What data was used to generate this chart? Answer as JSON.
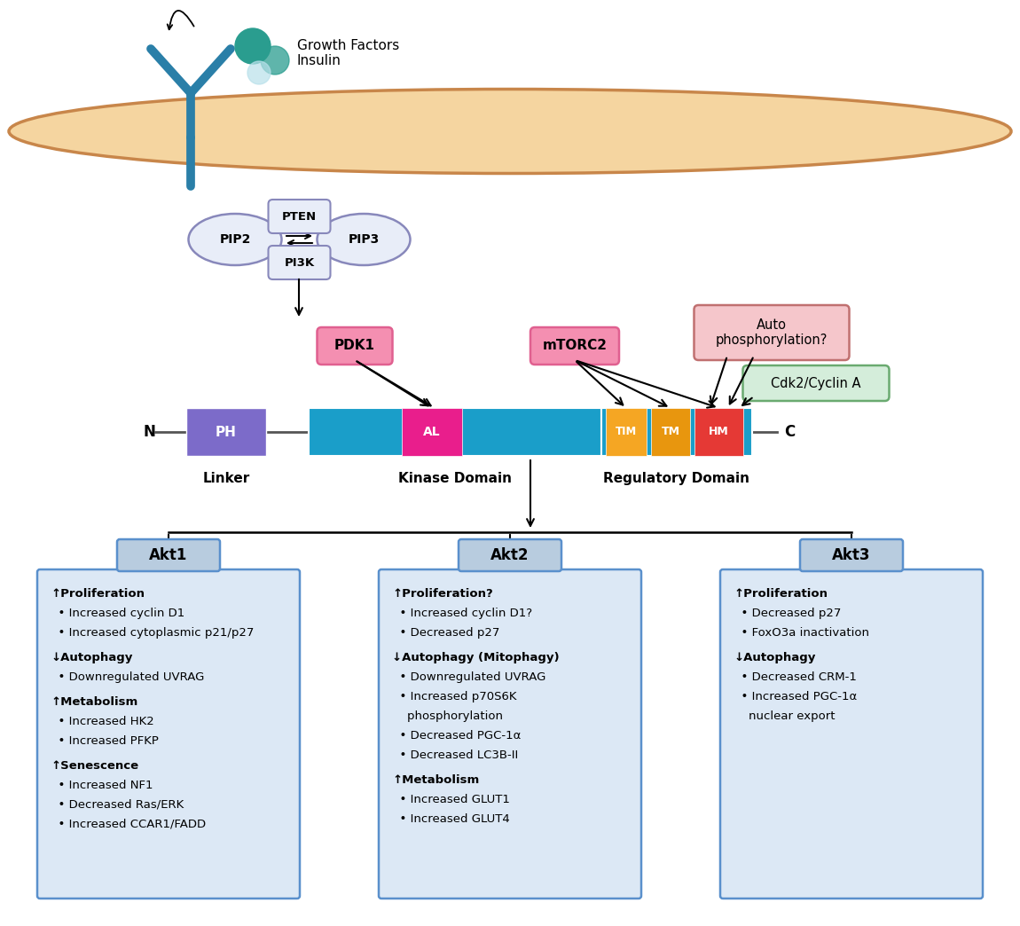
{
  "fig_width": 11.5,
  "fig_height": 10.44,
  "bg_color": "#ffffff",
  "membrane_fill": "#f5d5a0",
  "membrane_edge": "#c8864a",
  "receptor_color": "#2a7fa8",
  "growth_factor_text": "Growth Factors\nInsulin",
  "pdk1_color_fill": "#f48fb1",
  "pdk1_color_edge": "#e06090",
  "mtorc2_color_fill": "#f48fb1",
  "mtorc2_color_edge": "#e06090",
  "autophospho_color_fill": "#f5c6cb",
  "autophospho_color_edge": "#c07070",
  "cdk2_color_fill": "#d4edda",
  "cdk2_color_edge": "#6aaa70",
  "pip_fill": "#e8edf8",
  "pip_edge": "#8888bb",
  "pten_pi3k_fill": "#e8edf8",
  "pten_pi3k_edge": "#8888bb",
  "ph_color": "#7c6bc9",
  "teal_color": "#1a9ec9",
  "al_color": "#e91e8c",
  "tim_color": "#f5a623",
  "tm_color": "#e8960e",
  "hm_color": "#e53935",
  "box_bg_color": "#dce8f5",
  "box_edge_color": "#5a90cc",
  "title_bg_color": "#b8ccdf",
  "title_edge_color": "#5a90cc",
  "akt1_content": "↑Proliferation\n  • Increased cyclin D1\n  • Increased cytoplasmic p21/p27\n \n↓Autophagy\n  • Downregulated UVRAG\n \n↑Metabolism\n  • Increased HK2\n  • Increased PFKP\n \n↑Senescence\n  • Increased NF1\n  • Decreased Ras/ERK\n  • Increased CCAR1/FADD",
  "akt2_content": "↑Proliferation?\n  • Increased cyclin D1?\n  • Decreased p27\n \n↓Autophagy (Mitophagy)\n  • Downregulated UVRAG\n  • Increased p70S6K\n    phosphorylation\n  • Decreased PGC-1α\n  • Decreased LC3B-II\n \n↑Metabolism\n  • Increased GLUT1\n  • Increased GLUT4",
  "akt3_content": "↑Proliferation\n  • Decreased p27\n  • FoxO3a inactivation\n \n↓Autophagy\n  • Decreased CRM-1\n  • Increased PGC-1α\n    nuclear export"
}
